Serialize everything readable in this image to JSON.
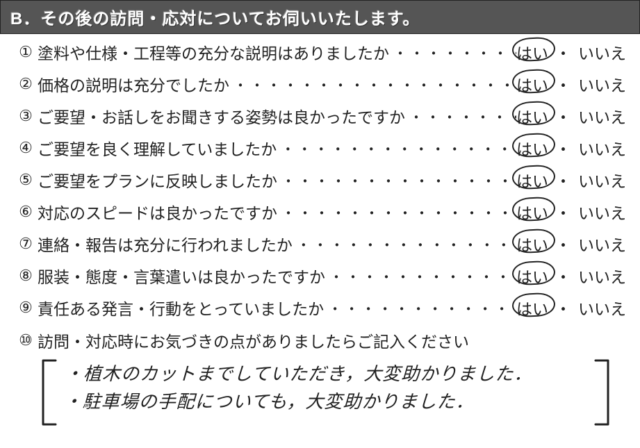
{
  "header": "B．その後の訪問・応対についてお伺いいたします。",
  "questions": [
    {
      "num": "①",
      "text": "塗料や仕様・工程等の充分な説明はありましたか",
      "yes": "はい",
      "no": "いいえ",
      "selected": "yes"
    },
    {
      "num": "②",
      "text": "価格の説明は充分でしたか",
      "yes": "はい",
      "no": "いいえ",
      "selected": "yes"
    },
    {
      "num": "③",
      "text": "ご要望・お話しをお聞きする姿勢は良かったですか",
      "yes": "はい",
      "no": "いいえ",
      "selected": "yes"
    },
    {
      "num": "④",
      "text": "ご要望を良く理解していましたか",
      "yes": "はい",
      "no": "いいえ",
      "selected": "yes"
    },
    {
      "num": "⑤",
      "text": "ご要望をプランに反映しましたか",
      "yes": "はい",
      "no": "いいえ",
      "selected": "yes"
    },
    {
      "num": "⑥",
      "text": "対応のスピードは良かったですか",
      "yes": "はい",
      "no": "いいえ",
      "selected": "yes"
    },
    {
      "num": "⑦",
      "text": "連絡・報告は充分に行われましたか",
      "yes": "はい",
      "no": "いいえ",
      "selected": "yes"
    },
    {
      "num": "⑧",
      "text": "服装・態度・言葉遣いは良かったですか",
      "yes": "はい",
      "no": "いいえ",
      "selected": "yes"
    },
    {
      "num": "⑨",
      "text": "責任ある発言・行動をとっていましたか",
      "yes": "はい",
      "no": "いいえ",
      "selected": "yes"
    }
  ],
  "q10": {
    "num": "⑩",
    "text": "訪問・対応時にお気づきの点がありましたらご記入ください"
  },
  "freeform": {
    "line1": "・植木のカットまでしていただき，大変助かりました．",
    "line2": "・駐車場の手配についても，大変助かりました．"
  },
  "dotsFill": "・・・・・・・・・・・・・・・・・・・・・・・・・・・・・・",
  "answerSep": "・"
}
